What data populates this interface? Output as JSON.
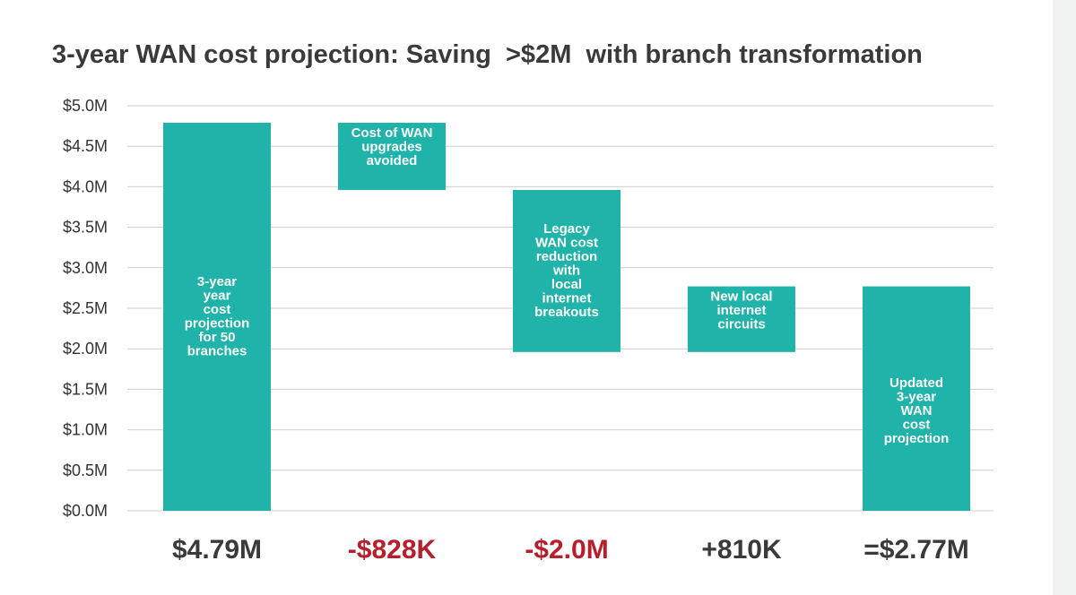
{
  "chart_data": {
    "type": "waterfall",
    "title": "3-year WAN cost projection: Saving  >$2M  with branch transformation",
    "xlabel": "",
    "ylabel": "",
    "ylim": [
      0,
      5.0
    ],
    "yticks": [
      "$0.0M",
      "$0.5M",
      "$1.0M",
      "$1.5M",
      "$2.0M",
      "$2.5M",
      "$3.0M",
      "$3.5M",
      "$4.0M",
      "$4.5M",
      "$5.0M"
    ],
    "grid": true,
    "bars": [
      {
        "label_lines": [
          "3-year",
          "year",
          "cost",
          "projection",
          "for 50",
          "branches"
        ],
        "base": 0,
        "top": 4.79,
        "value_label": "$4.79M",
        "value_color": "#3a3a3a"
      },
      {
        "label_lines": [
          "Cost of WAN",
          "upgrades",
          "avoided"
        ],
        "base": 3.96,
        "top": 4.79,
        "value_label": "-$828K",
        "value_color": "#b5202c"
      },
      {
        "label_lines": [
          "Legacy",
          "WAN cost",
          "reduction",
          "with",
          "local",
          "internet",
          "breakouts"
        ],
        "base": 1.96,
        "top": 3.96,
        "value_label": "-$2.0M",
        "value_color": "#b5202c"
      },
      {
        "label_lines": [
          "New local",
          "internet",
          "circuits"
        ],
        "base": 1.96,
        "top": 2.77,
        "value_label": "+810K",
        "value_color": "#3a3a3a"
      },
      {
        "label_lines": [
          "Updated",
          "3-year",
          "WAN",
          "cost",
          "projection"
        ],
        "base": 0,
        "top": 2.77,
        "value_label": "=$2.77M",
        "value_color": "#3a3a3a"
      }
    ],
    "colors": {
      "bar": "#1fb3a9",
      "grid": "#cfcfcf",
      "title": "#3a3a3a",
      "axis_text": "#333333"
    }
  }
}
